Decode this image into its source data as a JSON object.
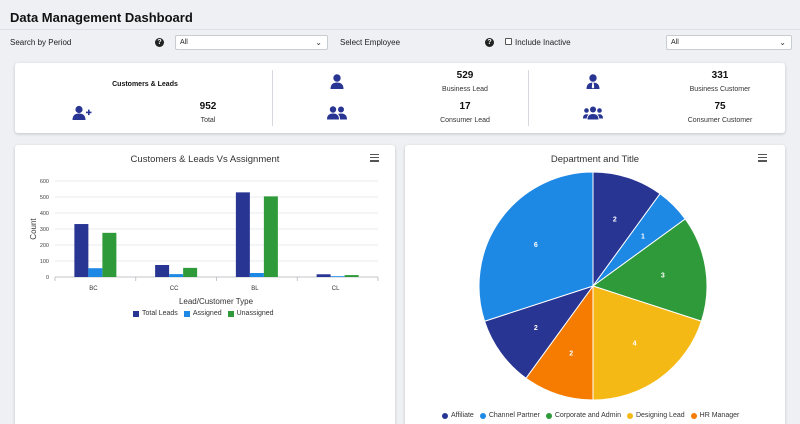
{
  "page": {
    "title": "Data Management Dashboard"
  },
  "filters": {
    "period_label": "Search by Period",
    "period_value": "All",
    "employee_label": "Select Employee",
    "include_inactive_label": "Include Inactive",
    "employee_value": "All",
    "help_glyph": "?",
    "chevron_glyph": "⌄"
  },
  "summary": {
    "customers_leads_heading": "Customers & Leads",
    "total_value": "952",
    "total_label": "Total",
    "business_lead_value": "529",
    "business_lead_label": "Business Lead",
    "consumer_lead_value": "17",
    "consumer_lead_label": "Consumer Lead",
    "business_customer_value": "331",
    "business_customer_label": "Business Customer",
    "consumer_customer_value": "75",
    "consumer_customer_label": "Consumer Customer"
  },
  "colors": {
    "total_leads": "#283593",
    "assigned": "#1e88e5",
    "unassigned": "#2e9a3a",
    "affiliate": "#283593",
    "channel_partner": "#1e88e5",
    "corporate_admin": "#2e9a3a",
    "designing_lead": "#f5b915",
    "hr_manager": "#f57c00",
    "icon": "#283593"
  },
  "bar_card": {
    "title": "Customers & Leads Vs Assignment"
  },
  "pie_card": {
    "title": "Department and Title"
  },
  "chart_data": [
    {
      "type": "bar",
      "title": "Customers & Leads Vs Assignment",
      "xlabel": "Lead/Customer Type",
      "ylabel": "Count",
      "ylim": [
        0,
        600
      ],
      "yticks": [
        0,
        100,
        200,
        300,
        400,
        500,
        600
      ],
      "categories": [
        "BC",
        "CC",
        "BL",
        "CL"
      ],
      "series": [
        {
          "name": "Total Leads",
          "values": [
            331,
            75,
            529,
            17
          ]
        },
        {
          "name": "Assigned",
          "values": [
            55,
            18,
            25,
            5
          ]
        },
        {
          "name": "Unassigned",
          "values": [
            276,
            57,
            504,
            12
          ]
        }
      ],
      "legend": "bottom"
    },
    {
      "type": "pie",
      "title": "Department and Title",
      "labels": [
        "Affiliate",
        "Channel Partner",
        "Corporate and Admin",
        "Designing Lead",
        "HR Manager",
        "Affiliate",
        "Channel Partner"
      ],
      "values": [
        2,
        1,
        3,
        4,
        2,
        2,
        6
      ],
      "legend_labels": [
        "Affiliate",
        "Channel Partner",
        "Corporate and Admin",
        "Designing Lead",
        "HR Manager"
      ],
      "legend": "bottom"
    }
  ]
}
